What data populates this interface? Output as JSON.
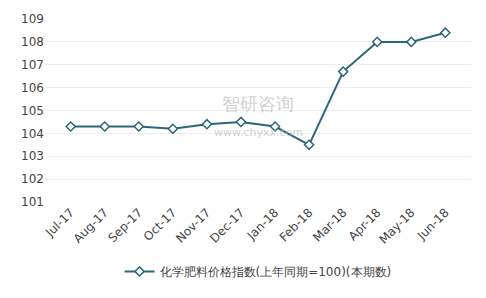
{
  "chart_data": {
    "type": "line",
    "categories": [
      "Jul-17",
      "Aug-17",
      "Sep-17",
      "Oct-17",
      "Nov-17",
      "Dec-17",
      "Jan-18",
      "Feb-18",
      "Mar-18",
      "Apr-18",
      "May-18",
      "Jun-18"
    ],
    "series": [
      {
        "name": "化学肥料价格指数(上年同期=100)(本期数)",
        "color": "#2b6777",
        "marker": "diamond",
        "values": [
          104.3,
          104.3,
          104.3,
          104.2,
          104.4,
          104.5,
          104.3,
          103.5,
          106.7,
          108.0,
          108.0,
          108.4
        ]
      }
    ],
    "ylim": [
      101,
      109
    ],
    "yticks": [
      101,
      102,
      103,
      104,
      105,
      106,
      107,
      108,
      109
    ],
    "grid": true,
    "legend": "bottom",
    "annotations": [
      "智研咨询",
      "www.chyxx.com"
    ]
  }
}
